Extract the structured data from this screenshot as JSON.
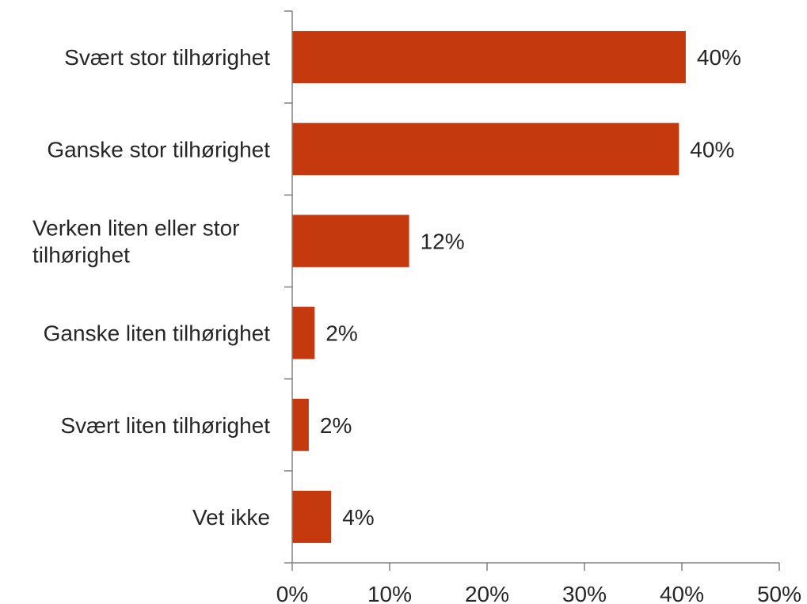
{
  "chart_data": {
    "type": "bar",
    "orientation": "horizontal",
    "categories": [
      [
        "Svært stor tilhørighet"
      ],
      [
        "Ganske stor tilhørighet"
      ],
      [
        "Verken liten eller stor",
        "tilhørighet"
      ],
      [
        "Ganske liten tilhørighet"
      ],
      [
        "Svært liten tilhørighet"
      ],
      [
        "Vet ikke"
      ]
    ],
    "values": [
      40.4,
      39.7,
      12.0,
      2.3,
      1.7,
      4.0
    ],
    "data_labels": [
      "40%",
      "40%",
      "12%",
      "2%",
      "2%",
      "4%"
    ],
    "title": "",
    "xlabel": "",
    "ylabel": "",
    "xlim": [
      0,
      50
    ],
    "x_ticks": [
      0,
      10,
      20,
      30,
      40,
      50
    ],
    "x_tick_labels": [
      "0%",
      "10%",
      "20%",
      "30%",
      "40%",
      "50%"
    ],
    "grid": false,
    "legend": "none",
    "bar_color": "#C4390E"
  }
}
